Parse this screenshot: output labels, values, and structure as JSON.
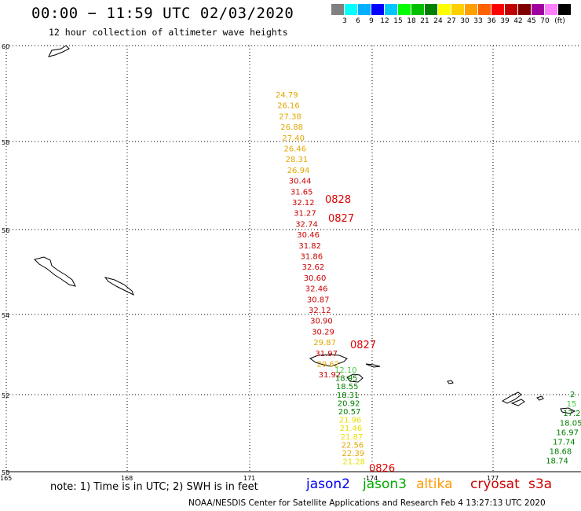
{
  "header": {
    "title": "00:00 − 11:59 UTC 02/03/2020",
    "subtitle": "12 hour collection of altimeter wave heights"
  },
  "color_scale": {
    "colors": [
      "#808080",
      "#00ffff",
      "#00b0ff",
      "#0000ff",
      "#00c8ff",
      "#00ff00",
      "#00c000",
      "#008000",
      "#ffff00",
      "#ffd000",
      "#ffa000",
      "#ff6000",
      "#ff0000",
      "#c00000",
      "#800000",
      "#a000a0",
      "#ff80ff",
      "#000000"
    ],
    "labels": [
      "3",
      "6",
      "9",
      "12",
      "15",
      "18",
      "21",
      "24",
      "27",
      "30",
      "33",
      "36",
      "39",
      "42",
      "45",
      "70"
    ],
    "unit": "(ft)"
  },
  "axes": {
    "lat_labels": [
      "60",
      "58",
      "56",
      "54",
      "52",
      "50"
    ],
    "lon_labels": [
      "165",
      "168",
      "171",
      "174",
      "177"
    ]
  },
  "observations": {
    "track_a": [
      {
        "v": "24.79",
        "c": "#e0a800"
      },
      {
        "v": "26.16",
        "c": "#e0a800"
      },
      {
        "v": "27.38",
        "c": "#e0a800"
      },
      {
        "v": "26.88",
        "c": "#e0a800"
      },
      {
        "v": "27.40",
        "c": "#e0a800"
      },
      {
        "v": "26.46",
        "c": "#e0a800"
      },
      {
        "v": "28.31",
        "c": "#e0a800"
      },
      {
        "v": "26.94",
        "c": "#e0a800"
      },
      {
        "v": "30.44",
        "c": "#cc0000"
      },
      {
        "v": "31.65",
        "c": "#cc0000"
      },
      {
        "v": "32.12",
        "c": "#cc0000"
      },
      {
        "v": "31.27",
        "c": "#cc0000"
      },
      {
        "v": "32.74",
        "c": "#cc0000"
      },
      {
        "v": "30.46",
        "c": "#cc0000"
      },
      {
        "v": "31.82",
        "c": "#cc0000"
      },
      {
        "v": "31.86",
        "c": "#cc0000"
      },
      {
        "v": "32.62",
        "c": "#cc0000"
      },
      {
        "v": "30.60",
        "c": "#cc0000"
      },
      {
        "v": "32.46",
        "c": "#cc0000"
      },
      {
        "v": "30.87",
        "c": "#cc0000"
      },
      {
        "v": "32.12",
        "c": "#cc0000"
      },
      {
        "v": "30.90",
        "c": "#cc0000"
      },
      {
        "v": "30.29",
        "c": "#cc0000"
      },
      {
        "v": "29.87",
        "c": "#e0a800"
      },
      {
        "v": "31.97",
        "c": "#cc0000"
      },
      {
        "v": "29.62",
        "c": "#e0a800"
      },
      {
        "v": "31.92",
        "c": "#cc0000"
      }
    ],
    "track_b": [
      {
        "v": "12.10",
        "c": "#44cc44"
      },
      {
        "v": "18.95",
        "c": "#008000"
      },
      {
        "v": "18.55",
        "c": "#008000"
      },
      {
        "v": "18.31",
        "c": "#008000"
      },
      {
        "v": "20.92",
        "c": "#008000"
      },
      {
        "v": "20.57",
        "c": "#008000"
      },
      {
        "v": "21.96",
        "c": "#e8e000"
      },
      {
        "v": "21.46",
        "c": "#e8e000"
      },
      {
        "v": "21.87",
        "c": "#e8e000"
      },
      {
        "v": "22.56",
        "c": "#e0a800"
      },
      {
        "v": "22.39",
        "c": "#e0a800"
      },
      {
        "v": "21.28",
        "c": "#e8e000"
      }
    ],
    "track_c": [
      {
        "v": "2",
        "c": "#008000"
      },
      {
        "v": "15",
        "c": "#44cc44"
      },
      {
        "v": "17.2",
        "c": "#008000"
      },
      {
        "v": "18.05",
        "c": "#008000"
      },
      {
        "v": "16.97",
        "c": "#008000"
      },
      {
        "v": "17.74",
        "c": "#008000"
      },
      {
        "v": "18.68",
        "c": "#008000"
      },
      {
        "v": "18.74",
        "c": "#008000"
      }
    ],
    "time_tags": [
      "0828",
      "0827",
      "0827",
      "0826"
    ]
  },
  "legend": {
    "note": "note: 1) Time is in UTC; 2) SWH is in feet",
    "satellites": [
      {
        "name": "jason2",
        "color": "#0000ee"
      },
      {
        "name": "jason3",
        "color": "#00aa00"
      },
      {
        "name": "altika",
        "color": "#ff9900"
      },
      {
        "name": "cryosat",
        "color": "#cc0000"
      },
      {
        "name": "s3a",
        "color": "#cc0000"
      }
    ]
  },
  "footer": {
    "text": "NOAA/NESDIS Center for Satellite Applications and Research    Feb  4 13:27:13 UTC 2020"
  }
}
